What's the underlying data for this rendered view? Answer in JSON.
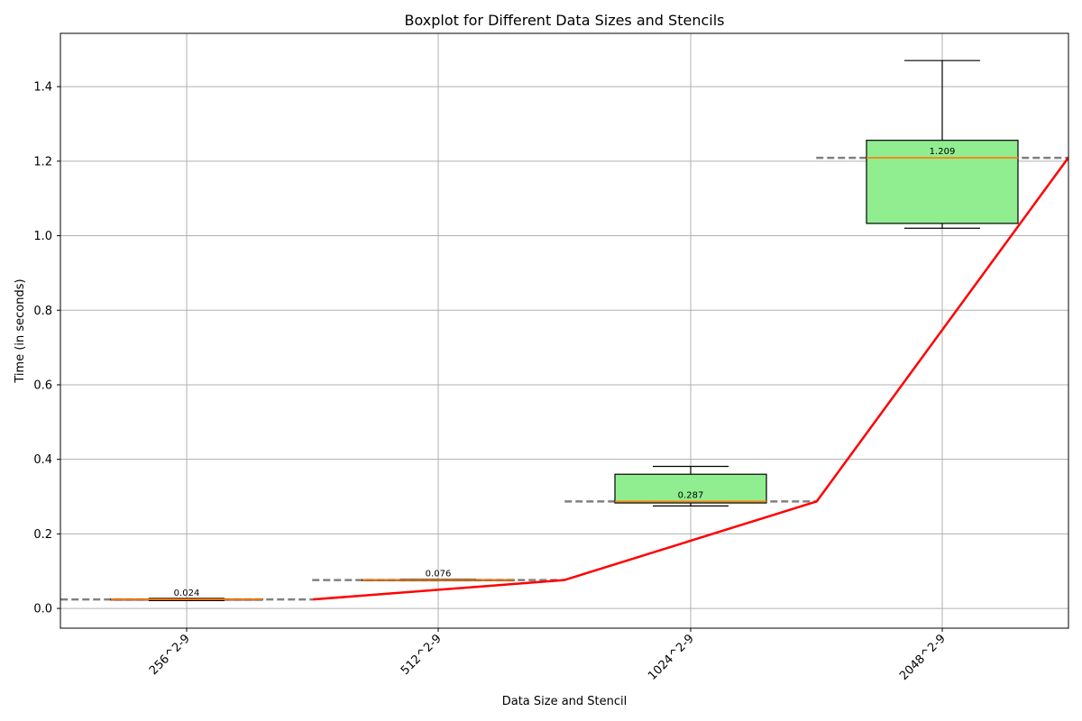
{
  "chart_data": {
    "type": "boxplot",
    "title": "Boxplot for Different Data Sizes and Stencils",
    "xlabel": "Data Size and Stencil",
    "ylabel": "Time (in seconds)",
    "categories": [
      "256^2-9",
      "512^2-9",
      "1024^2-9",
      "2048^2-9"
    ],
    "ylim": [
      -0.053,
      1.543
    ],
    "yticks": [
      0.0,
      0.2,
      0.4,
      0.6,
      0.8,
      1.0,
      1.2,
      1.4
    ],
    "ytick_labels": [
      "0.0",
      "0.2",
      "0.4",
      "0.6",
      "0.8",
      "1.0",
      "1.2",
      "1.4"
    ],
    "grid": true,
    "boxes": [
      {
        "category": "256^2-9",
        "whisker_low": 0.021,
        "q1": 0.023,
        "median": 0.024,
        "q3": 0.025,
        "whisker_high": 0.027,
        "median_label": "0.024",
        "color": "#90ee90"
      },
      {
        "category": "512^2-9",
        "whisker_low": 0.075,
        "q1": 0.075,
        "median": 0.076,
        "q3": 0.077,
        "whisker_high": 0.078,
        "median_label": "0.076",
        "color": "#90ee90"
      },
      {
        "category": "1024^2-9",
        "whisker_low": 0.275,
        "q1": 0.283,
        "median": 0.287,
        "q3": 0.36,
        "whisker_high": 0.381,
        "median_label": "0.287",
        "color": "#90ee90"
      },
      {
        "category": "2048^2-9",
        "whisker_low": 1.02,
        "q1": 1.033,
        "median": 1.209,
        "q3": 1.256,
        "whisker_high": 1.47,
        "median_label": "1.209",
        "color": "#90ee90"
      }
    ],
    "median_line": {
      "color": "#ff0000",
      "values": [
        0.024,
        0.076,
        0.287,
        1.209
      ]
    },
    "median_dash_color": "#808080",
    "median_marker_color": "#ff7f0e"
  }
}
